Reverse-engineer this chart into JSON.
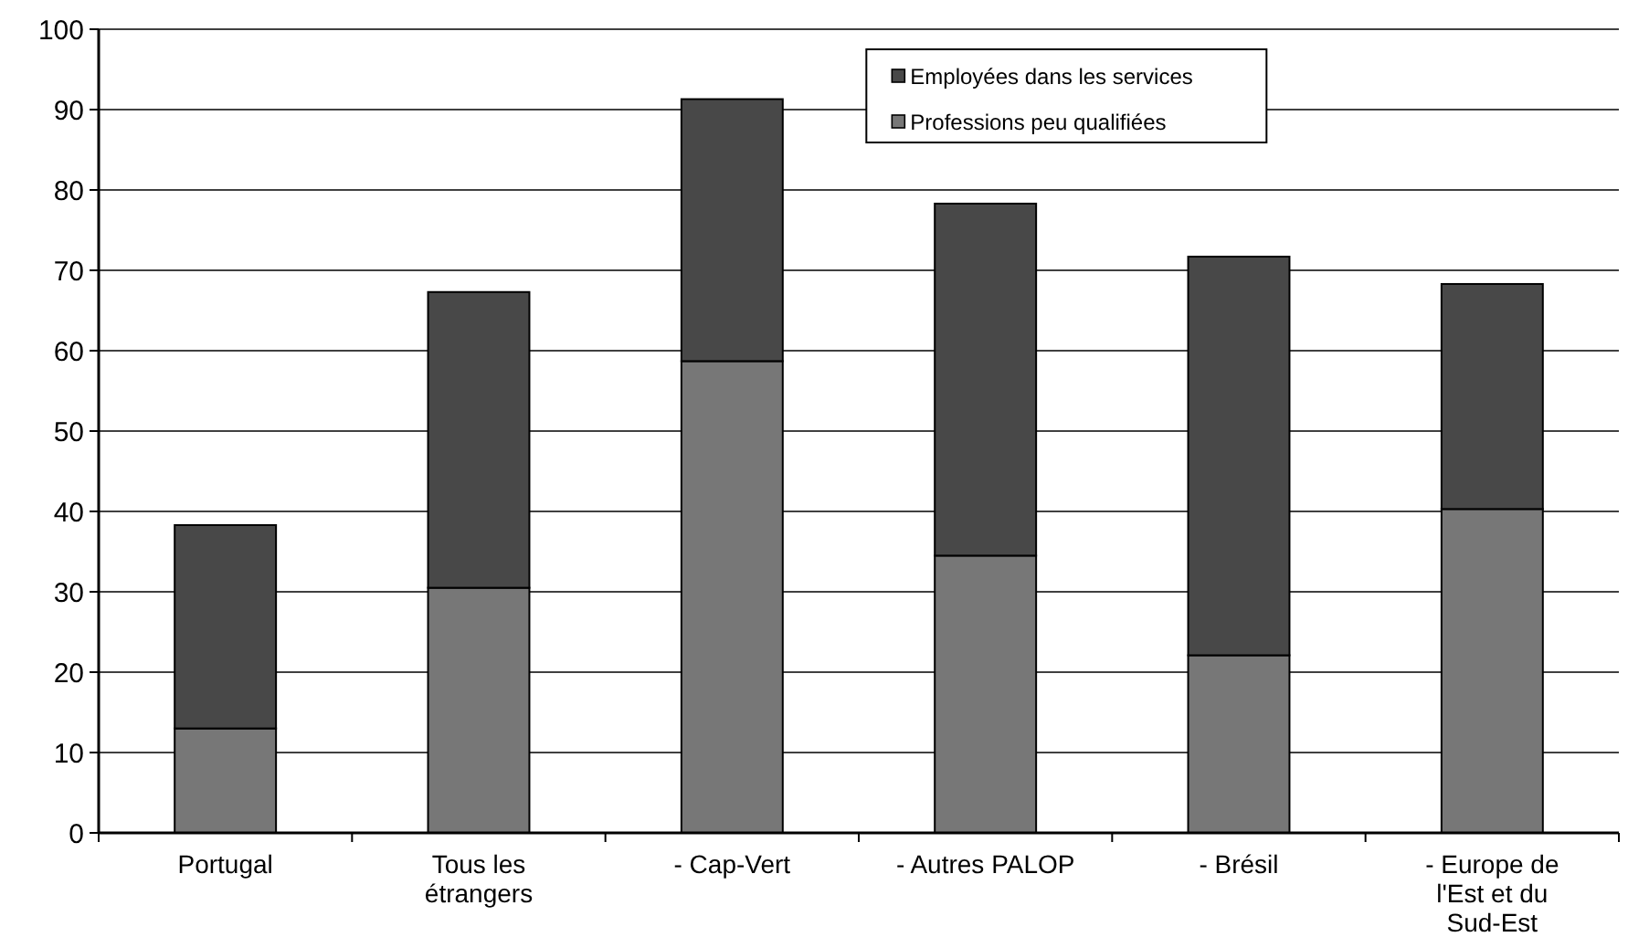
{
  "chart_data": {
    "type": "bar",
    "stacked": true,
    "categories": [
      "Portugal",
      "Tous les étrangers",
      "- Cap-Vert",
      "- Autres PALOP",
      "- Brésil",
      "- Europe de l'Est et du Sud-Est"
    ],
    "series": [
      {
        "name": "Professions peu qualifiées",
        "color": "#777777",
        "values": [
          13.0,
          30.5,
          58.7,
          34.5,
          22.1,
          40.3
        ]
      },
      {
        "name": "Employées dans les services",
        "color": "#484848",
        "values": [
          25.3,
          36.8,
          32.6,
          43.8,
          49.6,
          28.0
        ]
      }
    ],
    "ylim": [
      0,
      100
    ],
    "yticks": [
      0,
      10,
      20,
      30,
      40,
      50,
      60,
      70,
      80,
      90,
      100
    ],
    "grid": "y",
    "legend": "top"
  }
}
